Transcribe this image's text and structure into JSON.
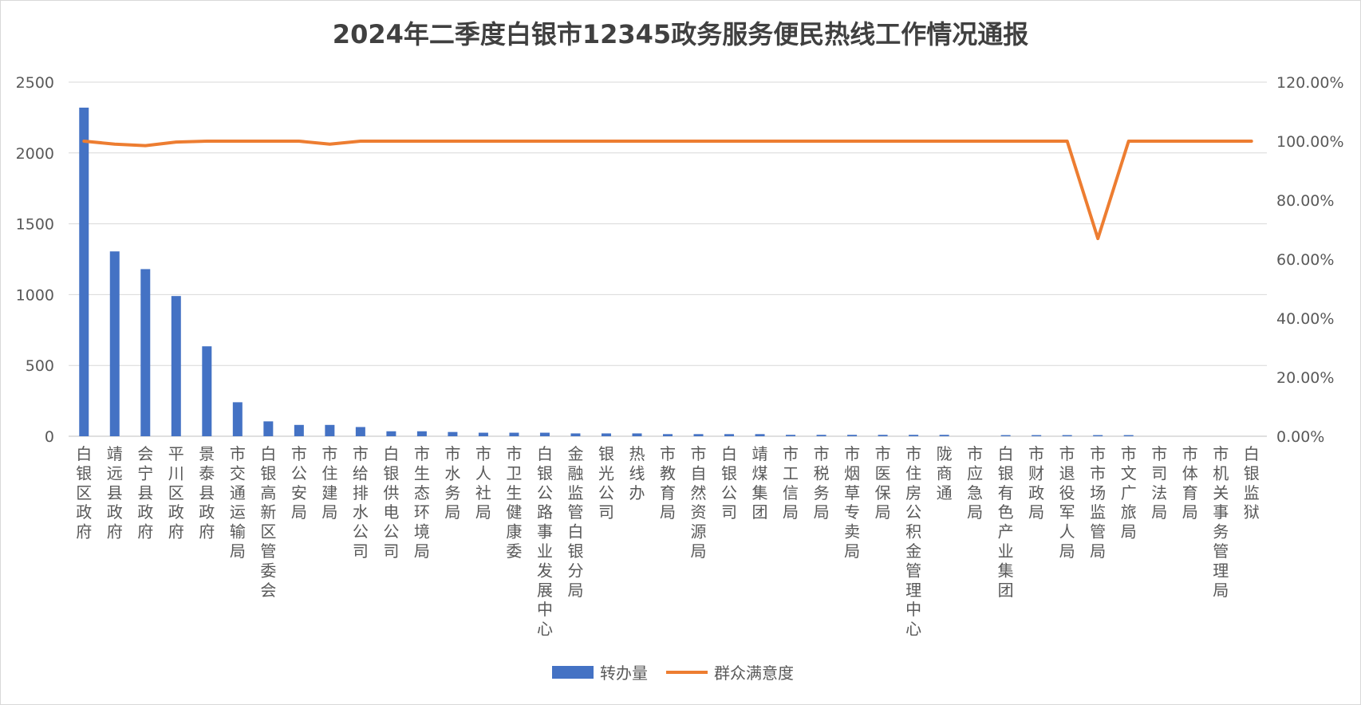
{
  "chart_data": {
    "type": "bar",
    "title": "2024年二季度白银市12345政务服务便民热线工作情况通报",
    "categories": [
      "白银区政府",
      "靖远县政府",
      "会宁县政府",
      "平川区政府",
      "景泰县政府",
      "市交通运输局",
      "白银高新区管委会",
      "市公安局",
      "市住建局",
      "市给排水公司",
      "白银供电公司",
      "市生态环境局",
      "市水务局",
      "市人社局",
      "市卫生健康委",
      "白银公路事业发展中心",
      "金融监管白银分局",
      "银光公司",
      "热线办",
      "市教育局",
      "市自然资源局",
      "白银公司",
      "靖煤集团",
      "市工信局",
      "市税务局",
      "市烟草专卖局",
      "市医保局",
      "市住房公积金管理中心",
      "陇商通",
      "市应急局",
      "白银有色产业集团",
      "市财政局",
      "市退役军人局",
      "市市场监管局",
      "市文广旅局",
      "市司法局",
      "市体育局",
      "市机关事务管理局",
      "白银监狱"
    ],
    "series": [
      {
        "name": "转办量",
        "type": "bar",
        "axis": "left",
        "color": "#4472C4",
        "values": [
          2320,
          1305,
          1180,
          990,
          635,
          240,
          105,
          80,
          80,
          65,
          35,
          35,
          30,
          25,
          25,
          25,
          20,
          20,
          20,
          15,
          15,
          15,
          15,
          10,
          10,
          10,
          10,
          10,
          10,
          0,
          8,
          8,
          8,
          8,
          8,
          0,
          0,
          0,
          0
        ]
      },
      {
        "name": "群众满意度",
        "type": "line",
        "axis": "right",
        "color": "#ED7D31",
        "values": [
          100,
          99,
          98.5,
          99.7,
          100,
          100,
          100,
          100,
          99,
          100,
          100,
          100,
          100,
          100,
          100,
          100,
          100,
          100,
          100,
          100,
          100,
          100,
          100,
          100,
          100,
          100,
          100,
          100,
          100,
          100,
          100,
          100,
          100,
          67,
          100,
          100,
          100,
          100,
          100
        ]
      }
    ],
    "y_left": {
      "min": 0,
      "max": 2500,
      "ticks": [
        "0",
        "500",
        "1000",
        "1500",
        "2000",
        "2500"
      ]
    },
    "y_right": {
      "min": 0,
      "max": 120,
      "ticks": [
        "0.00%",
        "20.00%",
        "40.00%",
        "60.00%",
        "80.00%",
        "100.00%",
        "120.00%"
      ]
    },
    "grid": true,
    "legend_position": "bottom",
    "legend": [
      "转办量",
      "群众满意度"
    ]
  }
}
